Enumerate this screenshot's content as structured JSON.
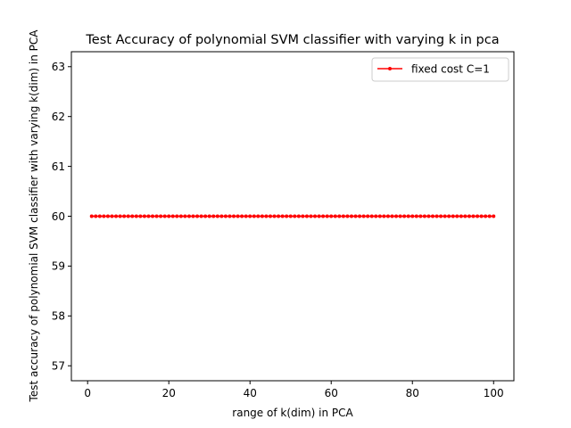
{
  "chart_data": {
    "type": "line",
    "title": "Test Accuracy of polynomial SVM classifier with varying k in pca",
    "xlabel": "range of k(dim) in PCA",
    "ylabel": "Test accuracy of polynomial SVM classifier with varying k(dim) in PCA",
    "xlim": [
      -4,
      105
    ],
    "ylim": [
      56.7,
      63.3
    ],
    "xticks": [
      "0",
      "20",
      "40",
      "60",
      "80",
      "100"
    ],
    "yticks": [
      "57",
      "58",
      "59",
      "60",
      "61",
      "62",
      "63"
    ],
    "grid": false,
    "legend_position": "top-right",
    "series": [
      {
        "name": "fixed cost C=1",
        "color": "#ff0000",
        "marker": "point",
        "x_start": 1,
        "x_end": 100,
        "x_step": 1,
        "y_constant": 60
      }
    ]
  }
}
